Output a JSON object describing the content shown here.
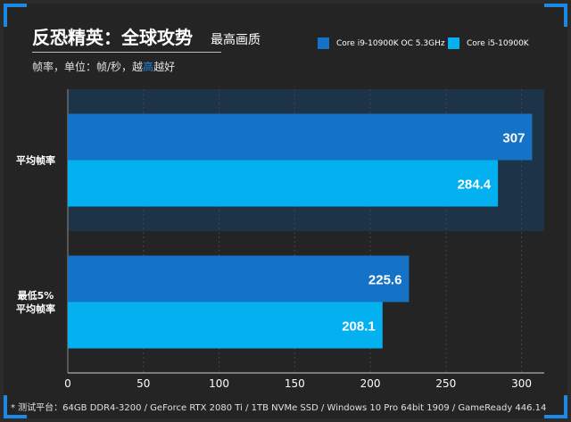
{
  "header": {
    "title": "反恐精英：全球攻势",
    "quality": "最高画质",
    "subtitle_prefix": "帧率，单位：帧/秒，越",
    "subtitle_highlight": "高",
    "subtitle_suffix": "越好"
  },
  "footer": {
    "note": "* 测试平台：64GB DDR4-3200 / GeForce RTX 2080 Ti / 1TB NVMe SSD / Windows 10 Pro 64bit 1909 / GameReady 446.14"
  },
  "colors": {
    "series1": "#1473c6",
    "series2": "#04b1f0",
    "band": "#1d3347",
    "accent": "#1e88e5"
  },
  "chart_data": {
    "type": "bar",
    "orientation": "horizontal",
    "categories": [
      {
        "lines": [
          "平均帧率"
        ]
      },
      {
        "lines": [
          "最低5%",
          "平均帧率"
        ]
      }
    ],
    "series": [
      {
        "name": "Core i9-10900K OC 5.3GHz",
        "values": [
          307,
          225.6
        ]
      },
      {
        "name": "Core i5-10900K",
        "values": [
          284.4,
          208.1
        ]
      }
    ],
    "xlim": [
      0,
      315
    ],
    "xticks": [
      0,
      50,
      100,
      150,
      200,
      250,
      300
    ],
    "grid": true,
    "legend_position": "top-right"
  }
}
